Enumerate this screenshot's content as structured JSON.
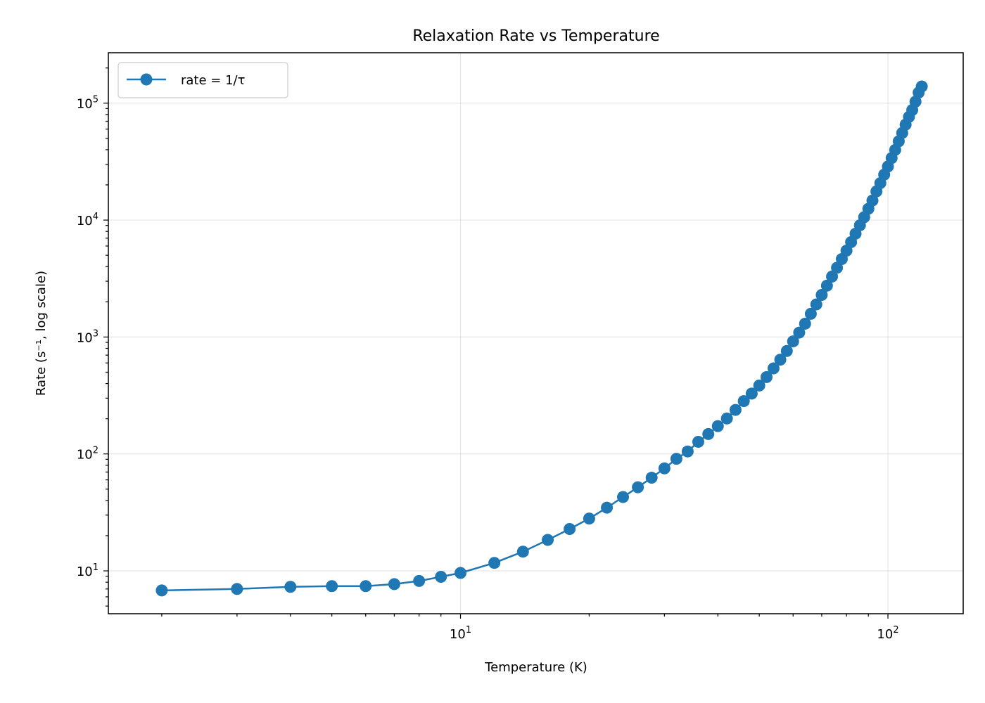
{
  "chart_data": {
    "type": "line",
    "title": "Relaxation Rate vs Temperature",
    "xlabel": "Temperature (K)",
    "ylabel": "Rate (s⁻¹, log scale)",
    "xscale": "log",
    "yscale": "log",
    "xlim": [
      1.5,
      150
    ],
    "ylim": [
      4.3,
      270000
    ],
    "grid": true,
    "legend_position": "top-left",
    "x_tick_labels": [
      {
        "value": 10,
        "base": "10",
        "exp": "1"
      },
      {
        "value": 100,
        "base": "10",
        "exp": "2"
      }
    ],
    "y_tick_labels": [
      {
        "value": 10,
        "base": "10",
        "exp": "1"
      },
      {
        "value": 100,
        "base": "10",
        "exp": "2"
      },
      {
        "value": 1000,
        "base": "10",
        "exp": "3"
      },
      {
        "value": 10000,
        "base": "10",
        "exp": "4"
      },
      {
        "value": 100000,
        "base": "10",
        "exp": "5"
      }
    ],
    "series": [
      {
        "name": "rate = 1/τ",
        "color": "#1f77b4",
        "marker": "circle",
        "x": [
          2,
          3,
          4,
          5,
          6,
          7,
          8,
          9,
          10,
          12,
          14,
          16,
          18,
          20,
          22,
          24,
          26,
          28,
          30,
          32,
          34,
          36,
          38,
          40,
          42,
          44,
          46,
          48,
          50,
          52,
          54,
          56,
          58,
          60,
          62,
          64,
          66,
          68,
          70,
          72,
          74,
          76,
          78,
          80,
          82,
          84,
          86,
          88,
          90,
          92,
          94,
          96,
          98,
          100,
          102,
          104,
          106,
          108,
          110,
          112,
          114,
          116,
          118,
          120
        ],
        "y": [
          6.8,
          7.0,
          7.3,
          7.4,
          7.4,
          7.7,
          8.2,
          8.9,
          9.6,
          11.7,
          14.6,
          18.4,
          22.8,
          28.0,
          34.7,
          42.8,
          51.9,
          62.6,
          75.2,
          90.9,
          105,
          127,
          148,
          173,
          201,
          238,
          283,
          328,
          385,
          454,
          539,
          640,
          760,
          918,
          1090,
          1300,
          1580,
          1900,
          2290,
          2750,
          3290,
          3910,
          4640,
          5480,
          6480,
          7650,
          9030,
          10600,
          12500,
          14700,
          17600,
          20700,
          24500,
          28700,
          33900,
          39800,
          47200,
          55600,
          65600,
          76300,
          87400,
          103000,
          123000,
          139000
        ]
      }
    ]
  }
}
